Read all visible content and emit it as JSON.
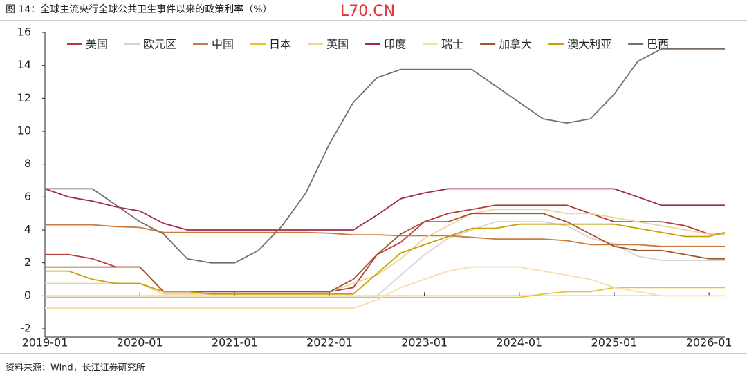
{
  "title": "图 14：全球主流央行全球公共卫生事件以来的政策利率（%）",
  "watermark": "L70.CN",
  "source": "资料来源：Wind，长江证券研究所",
  "chart_data": {
    "type": "line",
    "x": [
      "2019-01",
      "2019-04",
      "2019-07",
      "2019-10",
      "2020-01",
      "2020-04",
      "2020-07",
      "2020-10",
      "2021-01",
      "2021-04",
      "2021-07",
      "2021-10",
      "2022-01",
      "2022-04",
      "2022-07",
      "2022-10",
      "2023-01",
      "2023-04",
      "2023-07",
      "2023-10",
      "2024-01",
      "2024-04",
      "2024-07",
      "2024-10",
      "2025-01",
      "2025-04",
      "2025-07",
      "2025-10",
      "2026-01",
      "2026-03"
    ],
    "xlim": [
      "2019-01",
      "2026-03"
    ],
    "xticks": [
      "2019-01",
      "2020-01",
      "2021-01",
      "2022-01",
      "2023-01",
      "2024-01",
      "2025-01",
      "2026-01"
    ],
    "ylim": [
      -2,
      16
    ],
    "yticks": [
      -2,
      0,
      2,
      4,
      6,
      8,
      10,
      12,
      14,
      16
    ],
    "series": [
      {
        "name": "美国",
        "color": "#b53a3a",
        "values": [
          2.5,
          2.5,
          2.25,
          1.75,
          1.75,
          0.25,
          0.25,
          0.25,
          0.25,
          0.25,
          0.25,
          0.25,
          0.25,
          0.5,
          2.5,
          3.25,
          4.5,
          5.0,
          5.25,
          5.5,
          5.5,
          5.5,
          5.5,
          5.0,
          4.5,
          4.5,
          4.5,
          4.25,
          3.75,
          3.75
        ]
      },
      {
        "name": "欧元区",
        "color": "#d4d4d4",
        "values": [
          0,
          0,
          0,
          0,
          0,
          0,
          0,
          0,
          0,
          0,
          0,
          0,
          0,
          0,
          0,
          1.25,
          2.5,
          3.5,
          4.0,
          4.5,
          4.5,
          4.5,
          4.25,
          3.5,
          3.15,
          2.4,
          2.15,
          2.15,
          2.15,
          2.15
        ]
      },
      {
        "name": "中国",
        "color": "#c97a3c",
        "values": [
          4.31,
          4.31,
          4.31,
          4.2,
          4.15,
          3.85,
          3.85,
          3.85,
          3.85,
          3.85,
          3.85,
          3.85,
          3.8,
          3.7,
          3.7,
          3.65,
          3.65,
          3.65,
          3.55,
          3.45,
          3.45,
          3.45,
          3.35,
          3.1,
          3.1,
          3.1,
          3.0,
          3.0,
          3.0,
          3.0
        ]
      },
      {
        "name": "日本",
        "color": "#f0c020",
        "values": [
          -0.1,
          -0.1,
          -0.1,
          -0.1,
          -0.1,
          -0.1,
          -0.1,
          -0.1,
          -0.1,
          -0.1,
          -0.1,
          -0.1,
          -0.1,
          -0.1,
          -0.1,
          -0.1,
          -0.1,
          -0.1,
          -0.1,
          -0.1,
          -0.1,
          0.1,
          0.25,
          0.25,
          0.5,
          0.5,
          0.5,
          0.5,
          0.5,
          0.5
        ]
      },
      {
        "name": "英国",
        "color": "#efd49a",
        "values": [
          0.75,
          0.75,
          0.75,
          0.75,
          0.75,
          0.1,
          0.1,
          0.1,
          0.1,
          0.1,
          0.1,
          0.1,
          0.25,
          0.75,
          1.25,
          2.25,
          3.5,
          4.25,
          5.0,
          5.25,
          5.25,
          5.25,
          5.0,
          5.0,
          4.75,
          4.5,
          4.25,
          4.0,
          3.75,
          3.75
        ]
      },
      {
        "name": "印度",
        "color": "#9e2a4a",
        "values": [
          6.5,
          6.0,
          5.75,
          5.4,
          5.15,
          4.4,
          4.0,
          4.0,
          4.0,
          4.0,
          4.0,
          4.0,
          4.0,
          4.0,
          4.9,
          5.9,
          6.25,
          6.5,
          6.5,
          6.5,
          6.5,
          6.5,
          6.5,
          6.5,
          6.5,
          6.0,
          5.5,
          5.5,
          5.5,
          5.5
        ]
      },
      {
        "name": "瑞士",
        "color": "#f5dfa8",
        "values": [
          -0.75,
          -0.75,
          -0.75,
          -0.75,
          -0.75,
          -0.75,
          -0.75,
          -0.75,
          -0.75,
          -0.75,
          -0.75,
          -0.75,
          -0.75,
          -0.75,
          -0.25,
          0.5,
          1.0,
          1.5,
          1.75,
          1.75,
          1.75,
          1.5,
          1.25,
          1.0,
          0.5,
          0.25,
          0,
          0,
          0,
          0
        ]
      },
      {
        "name": "加拿大",
        "color": "#a0522d",
        "values": [
          1.75,
          1.75,
          1.75,
          1.75,
          1.75,
          0.25,
          0.25,
          0.25,
          0.25,
          0.25,
          0.25,
          0.25,
          0.25,
          1.0,
          2.5,
          3.75,
          4.5,
          4.5,
          5.0,
          5.0,
          5.0,
          5.0,
          4.5,
          3.75,
          3.0,
          2.75,
          2.75,
          2.5,
          2.25,
          2.25
        ]
      },
      {
        "name": "澳大利亚",
        "color": "#c8a000",
        "values": [
          1.5,
          1.5,
          1.0,
          0.75,
          0.75,
          0.25,
          0.25,
          0.1,
          0.1,
          0.1,
          0.1,
          0.1,
          0.1,
          0.1,
          1.35,
          2.6,
          3.1,
          3.6,
          4.1,
          4.1,
          4.35,
          4.35,
          4.35,
          4.35,
          4.35,
          4.1,
          3.85,
          3.6,
          3.6,
          3.85
        ]
      },
      {
        "name": "巴西",
        "color": "#7a6c60",
        "values": [
          6.5,
          6.5,
          6.5,
          5.5,
          4.5,
          3.75,
          2.25,
          2.0,
          2.0,
          2.75,
          4.25,
          6.25,
          9.25,
          11.75,
          13.25,
          13.75,
          13.75,
          13.75,
          13.75,
          12.75,
          11.75,
          10.75,
          10.5,
          10.75,
          12.25,
          14.25,
          15.0,
          15.0,
          15.0,
          15.0
        ]
      }
    ]
  }
}
